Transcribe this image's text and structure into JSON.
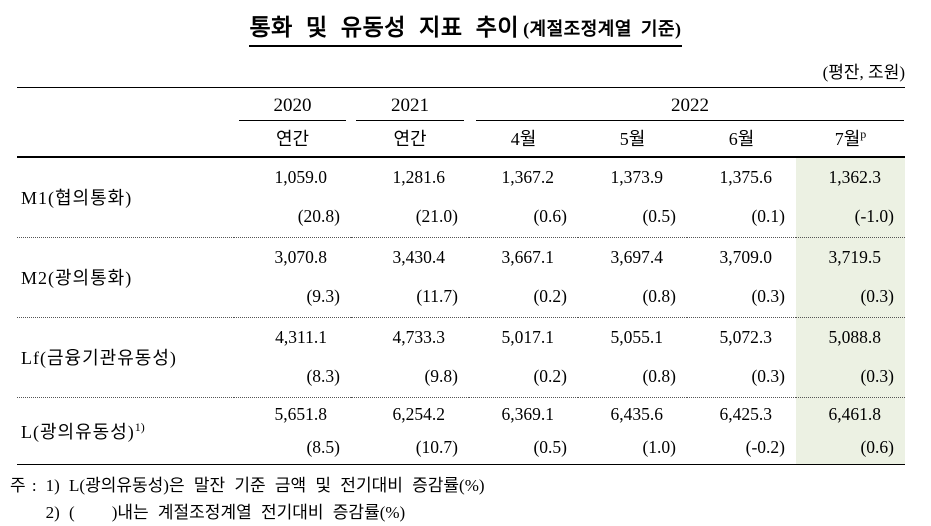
{
  "title": {
    "main": "통화 및 유동성 지표 추이",
    "sub": "(계절조정계열 기준)"
  },
  "unit_note": "(평잔, 조원)",
  "table": {
    "col_years": {
      "y2020": "2020",
      "y2021": "2021",
      "y2022": "2022"
    },
    "subheads": {
      "a2020": "연간",
      "a2021": "연간",
      "m4": "4월",
      "m5": "5월",
      "m6": "6월",
      "m7": "7월",
      "m7_sup": "p"
    },
    "rows": [
      {
        "label": "M1(협의통화)",
        "label_sup": "",
        "cells": [
          {
            "v": "1,059.0",
            "p": "(20.8)"
          },
          {
            "v": "1,281.6",
            "p": "(21.0)"
          },
          {
            "v": "1,367.2",
            "p": "(0.6)"
          },
          {
            "v": "1,373.9",
            "p": "(0.5)"
          },
          {
            "v": "1,375.6",
            "p": "(0.1)"
          },
          {
            "v": "1,362.3",
            "p": "(-1.0)"
          }
        ]
      },
      {
        "label": "M2(광의통화)",
        "label_sup": "",
        "cells": [
          {
            "v": "3,070.8",
            "p": "(9.3)"
          },
          {
            "v": "3,430.4",
            "p": "(11.7)"
          },
          {
            "v": "3,667.1",
            "p": "(0.2)"
          },
          {
            "v": "3,697.4",
            "p": "(0.8)"
          },
          {
            "v": "3,709.0",
            "p": "(0.3)"
          },
          {
            "v": "3,719.5",
            "p": "(0.3)"
          }
        ]
      },
      {
        "label": "Lf(금융기관유동성)",
        "label_sup": "",
        "cells": [
          {
            "v": "4,311.1",
            "p": "(8.3)"
          },
          {
            "v": "4,733.3",
            "p": "(9.8)"
          },
          {
            "v": "5,017.1",
            "p": "(0.2)"
          },
          {
            "v": "5,055.1",
            "p": "(0.8)"
          },
          {
            "v": "5,072.3",
            "p": "(0.3)"
          },
          {
            "v": "5,088.8",
            "p": "(0.3)"
          }
        ]
      },
      {
        "label": "L(광의유동성)",
        "label_sup": "1)",
        "cells": [
          {
            "v": "5,651.8",
            "p": "(8.5)"
          },
          {
            "v": "6,254.2",
            "p": "(10.7)"
          },
          {
            "v": "6,369.1",
            "p": "(0.5)"
          },
          {
            "v": "6,435.6",
            "p": "(1.0)"
          },
          {
            "v": "6,425.3",
            "p": "(-0.2)"
          },
          {
            "v": "6,461.8",
            "p": "(0.6)"
          }
        ]
      }
    ]
  },
  "footnotes": {
    "prefix": "주 :",
    "lines": [
      "1) L(광의유동성)은 말잔 기준 금액 및 전기대비 증감률(%)",
      "2) (    )내는 계절조정계열 전기대비 증감률(%)"
    ]
  },
  "colors": {
    "highlight": "#ecf1e3"
  }
}
